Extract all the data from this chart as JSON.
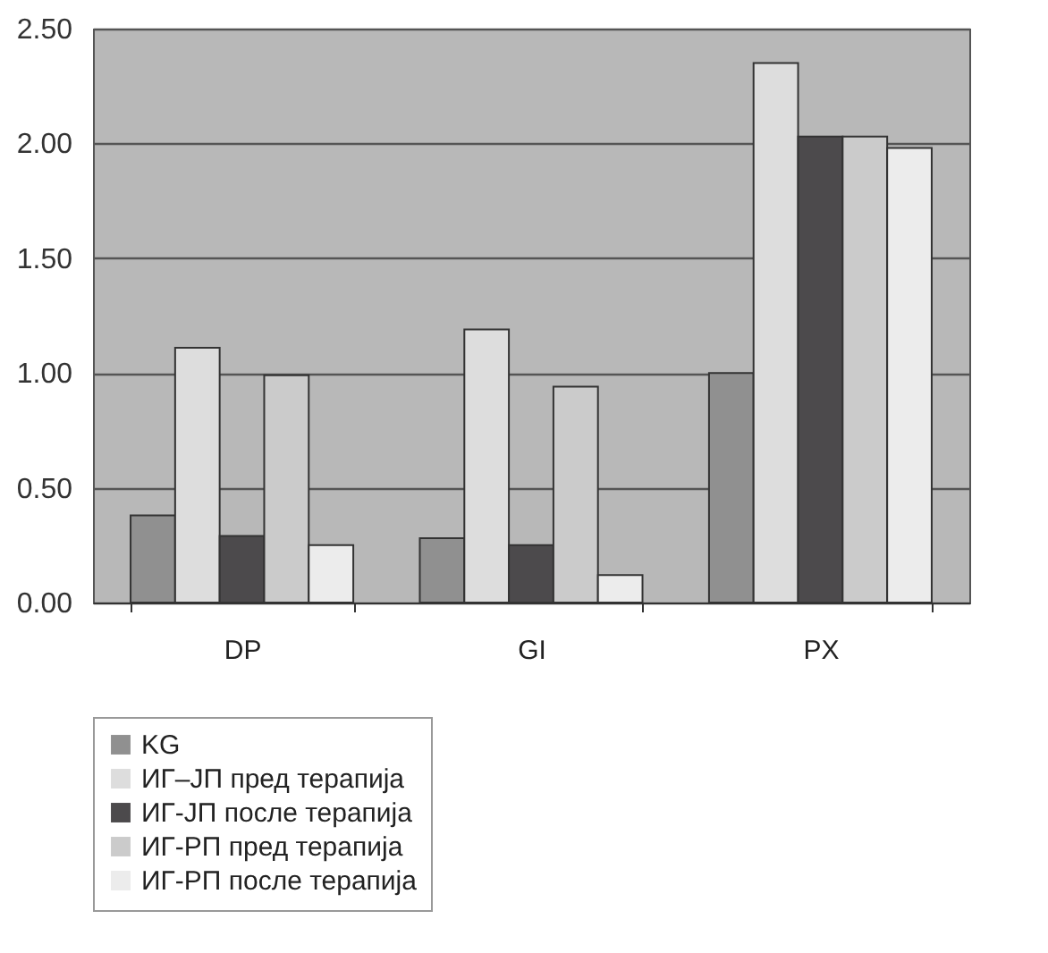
{
  "chart_data": {
    "type": "bar",
    "categories": [
      "DP",
      "GI",
      "PX"
    ],
    "series": [
      {
        "name": "KG",
        "color": "#909090",
        "values": [
          0.38,
          0.28,
          1.0
        ]
      },
      {
        "name": "ИГ–ЈП пред терапија",
        "color": "#dddddd",
        "values": [
          1.11,
          1.19,
          2.35
        ]
      },
      {
        "name": "ИГ-ЈП после терапија",
        "color": "#4c4a4c",
        "values": [
          0.29,
          0.25,
          2.03
        ]
      },
      {
        "name": "ИГ-РП пред терапија",
        "color": "#cbcbcb",
        "values": [
          0.99,
          0.94,
          2.03
        ]
      },
      {
        "name": "ИГ-РП после терапија",
        "color": "#ececec",
        "values": [
          0.25,
          0.12,
          1.98
        ]
      }
    ],
    "ylim": [
      0,
      2.5
    ],
    "yticks": [
      {
        "value": 0,
        "label": "0.00"
      },
      {
        "value": 0.5,
        "label": "0.50"
      },
      {
        "value": 1,
        "label": "1.00"
      },
      {
        "value": 1.5,
        "label": "1.50"
      },
      {
        "value": 2,
        "label": "2.00"
      },
      {
        "value": 2.5,
        "label": "2.50"
      }
    ],
    "grid": "y",
    "legend": "bottom"
  }
}
